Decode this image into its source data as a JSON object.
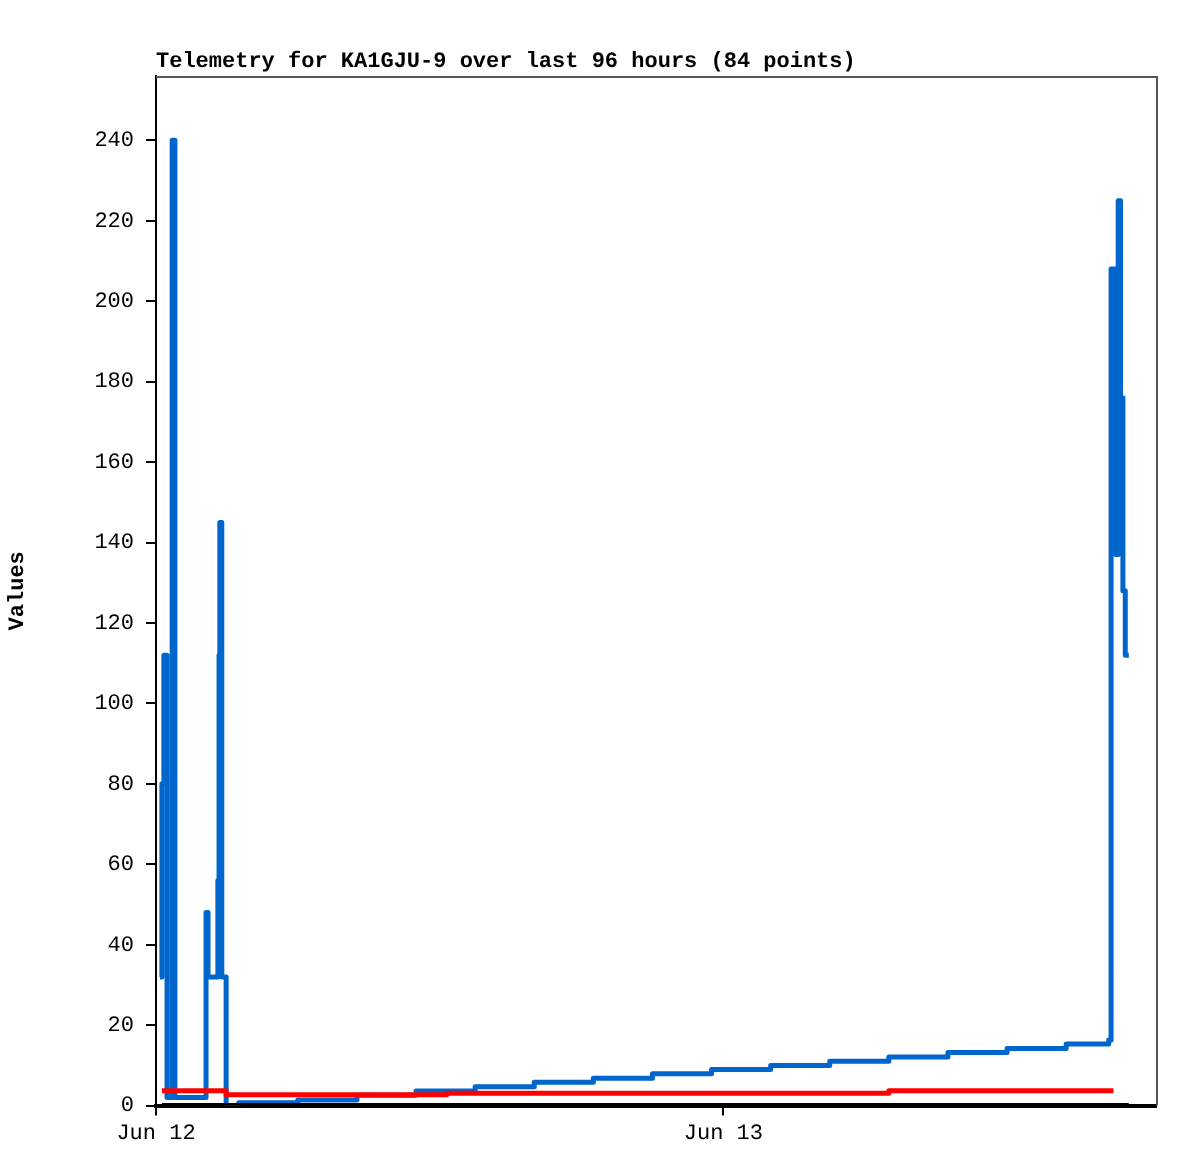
{
  "chart_data": {
    "type": "step",
    "title": "Telemetry for KA1GJU-9 over last 96 hours (84 points)",
    "ylabel": "Values",
    "xlim": [
      "--06-12T00:00",
      "--06-13T18:18"
    ],
    "xticks": [
      {
        "value": "--06-12",
        "label": "Jun 12"
      },
      {
        "value": "--06-13",
        "label": "Jun 13"
      }
    ],
    "ylim": [
      0,
      256
    ],
    "yticks": [
      0,
      20,
      40,
      60,
      80,
      100,
      120,
      140,
      160,
      180,
      200,
      220,
      240
    ],
    "grid": false,
    "legend": false,
    "marker": "none",
    "line_style": "solid",
    "series": [
      {
        "color": "#000000",
        "x": [
          "--06-12T00:15",
          "--06-13T17:09"
        ],
        "values": [
          0,
          0
        ]
      },
      {
        "color": "#ff0000",
        "x": [
          "--06-12T00:15",
          "--06-12T02:58",
          "--06-12T12:18",
          "--06-13T07:00",
          "--06-13T16:30"
        ],
        "values": [
          3.7,
          2.7,
          3.1,
          3.7,
          3.7
        ]
      },
      {
        "color": "#0066cc",
        "x": [
          "--06-12T00:10",
          "--06-12T00:15",
          "--06-12T00:20",
          "--06-12T00:28",
          "--06-12T00:41",
          "--06-12T00:48",
          "--06-12T02:07",
          "--06-12T02:12",
          "--06-12T02:37",
          "--06-12T02:40",
          "--06-12T02:42",
          "--06-12T02:47",
          "--06-12T02:58",
          "--06-12T03:30",
          "--06-12T06:00",
          "--06-12T08:30",
          "--06-12T11:00",
          "--06-12T13:30",
          "--06-12T16:00",
          "--06-12T18:30",
          "--06-12T21:00",
          "--06-12T23:30",
          "--06-13T02:00",
          "--06-13T04:30",
          "--06-13T07:00",
          "--06-13T09:30",
          "--06-13T12:00",
          "--06-13T14:30",
          "--06-13T16:18",
          "--06-13T16:24",
          "--06-13T16:36",
          "--06-13T16:42",
          "--06-13T16:48",
          "--06-13T16:54",
          "--06-13T17:00",
          "--06-13T17:09"
        ],
        "values": [
          32,
          80,
          112,
          2,
          240,
          2,
          48,
          32,
          56,
          112,
          145,
          32,
          0,
          0.7,
          1.4,
          2.6,
          3.6,
          4.7,
          5.8,
          6.8,
          7.9,
          9,
          10,
          11,
          12.1,
          13.2,
          14.2,
          15.3,
          16.3,
          208,
          137,
          225,
          176,
          128,
          112,
          112
        ]
      }
    ]
  }
}
